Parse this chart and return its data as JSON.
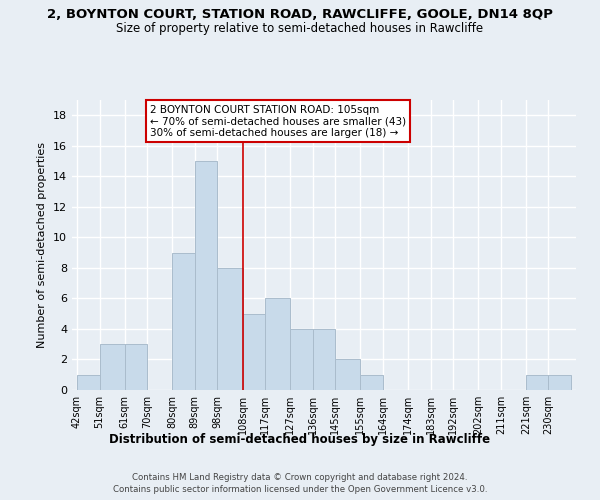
{
  "title": "2, BOYNTON COURT, STATION ROAD, RAWCLIFFE, GOOLE, DN14 8QP",
  "subtitle": "Size of property relative to semi-detached houses in Rawcliffe",
  "xlabel": "Distribution of semi-detached houses by size in Rawcliffe",
  "ylabel": "Number of semi-detached properties",
  "bin_labels": [
    "42sqm",
    "51sqm",
    "61sqm",
    "70sqm",
    "80sqm",
    "89sqm",
    "98sqm",
    "108sqm",
    "117sqm",
    "127sqm",
    "136sqm",
    "145sqm",
    "155sqm",
    "164sqm",
    "174sqm",
    "183sqm",
    "192sqm",
    "202sqm",
    "211sqm",
    "221sqm",
    "230sqm"
  ],
  "bin_edges": [
    42,
    51,
    61,
    70,
    80,
    89,
    98,
    108,
    117,
    127,
    136,
    145,
    155,
    164,
    174,
    183,
    192,
    202,
    211,
    221,
    230
  ],
  "counts": [
    1,
    3,
    3,
    0,
    9,
    15,
    8,
    5,
    6,
    4,
    4,
    2,
    1,
    0,
    0,
    0,
    0,
    0,
    0,
    1,
    1
  ],
  "bar_color": "#c8daea",
  "bar_edge_color": "#aabccc",
  "vline_x": 108,
  "vline_color": "#cc0000",
  "ylim": [
    0,
    19
  ],
  "yticks": [
    0,
    2,
    4,
    6,
    8,
    10,
    12,
    14,
    16,
    18
  ],
  "annotation_title": "2 BOYNTON COURT STATION ROAD: 105sqm",
  "annotation_line1": "← 70% of semi-detached houses are smaller (43)",
  "annotation_line2": "30% of semi-detached houses are larger (18) →",
  "annotation_box_color": "#ffffff",
  "annotation_box_edge": "#cc0000",
  "footnote1": "Contains HM Land Registry data © Crown copyright and database right 2024.",
  "footnote2": "Contains public sector information licensed under the Open Government Licence v3.0.",
  "background_color": "#e8eef4",
  "grid_color": "#ffffff",
  "title_fontsize": 9.5,
  "subtitle_fontsize": 8.5
}
